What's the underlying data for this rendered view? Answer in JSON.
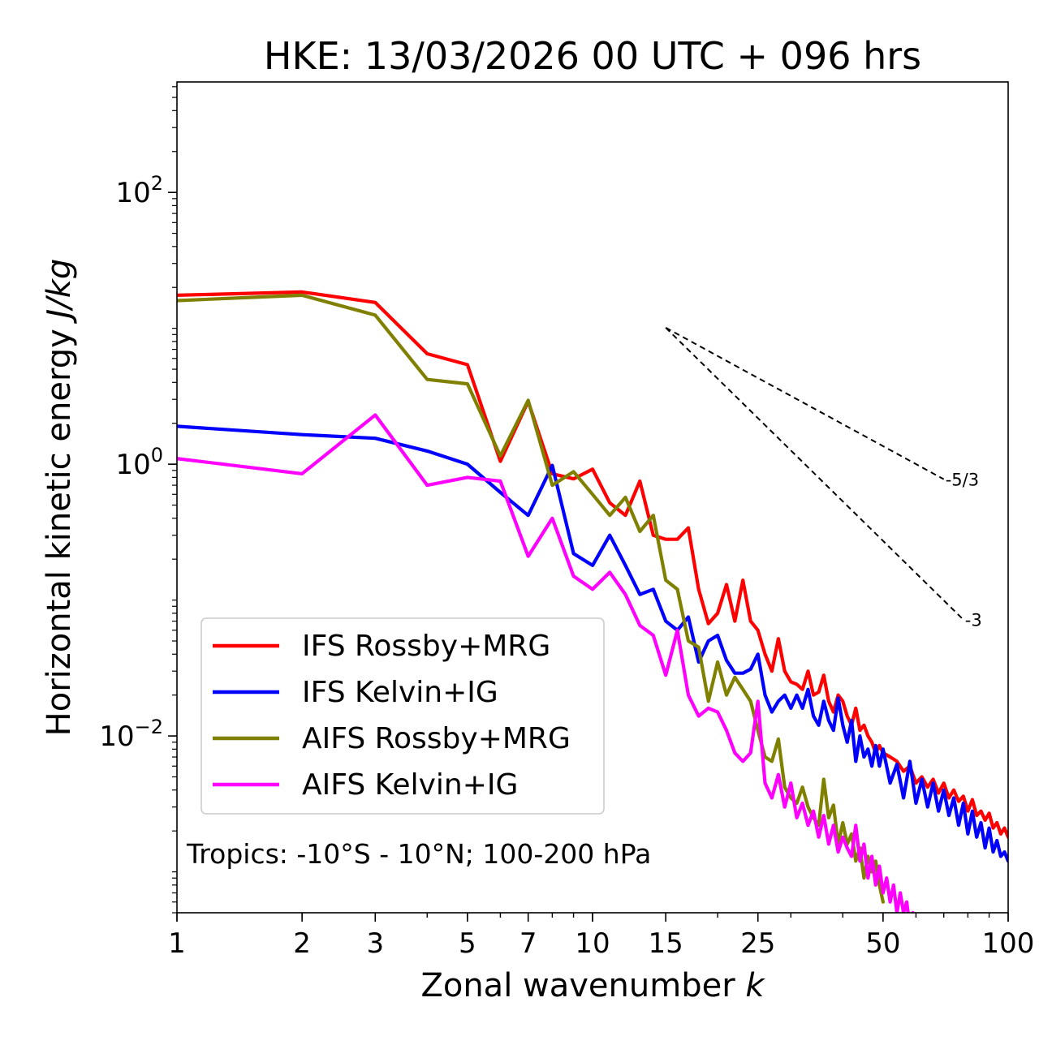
{
  "chart_data": {
    "type": "line",
    "title": "HKE: 13/03/2026 00 UTC + 096 hrs",
    "xlabel": "Zonal wavenumber ",
    "xlabel_var": "k",
    "ylabel": "Horizontal kinetic energy ",
    "ylabel_unit": "J/kg",
    "xscale": "log",
    "yscale": "log",
    "xlim": [
      1,
      100
    ],
    "ylim": [
      0.0005,
      650
    ],
    "x_ticks": [
      1,
      2,
      3,
      5,
      7,
      10,
      15,
      25,
      50,
      100
    ],
    "x_tick_labels": [
      "1",
      "2",
      "3",
      "5",
      "7",
      "10",
      "15",
      "25",
      "50",
      "100"
    ],
    "y_ticks": [
      {
        "value": 100,
        "base": "10",
        "exp": "2"
      },
      {
        "value": 1,
        "base": "10",
        "exp": "0"
      },
      {
        "value": 0.01,
        "base": "10",
        "exp": "−2"
      }
    ],
    "annotation": "Tropics: -10°S - 10°N; 100-200 hPa",
    "legend_position": "lower-left",
    "reference_slopes": [
      {
        "label": "-5/3",
        "slope": -1.6667,
        "x_start": 15,
        "y_start": 10.1,
        "x_end": 70
      },
      {
        "label": "-3",
        "slope": -3,
        "x_start": 15,
        "y_start": 10.1,
        "x_end": 78
      }
    ],
    "series": [
      {
        "name": "IFS Rossby+MRG",
        "color": "#ff0000",
        "x": [
          1,
          2,
          3,
          4,
          5,
          6,
          7,
          8,
          9,
          10,
          11,
          12,
          13,
          14,
          15,
          16,
          17,
          18,
          19,
          20,
          21,
          22,
          23,
          24,
          25,
          26,
          27,
          28,
          29,
          30,
          31,
          32,
          33,
          34,
          35,
          36,
          37,
          38,
          39,
          40,
          41,
          42,
          43,
          44,
          45,
          46,
          47,
          48,
          49,
          50,
          52,
          54,
          56,
          58,
          60,
          62,
          64,
          66,
          68,
          70,
          72,
          74,
          76,
          78,
          80,
          82,
          84,
          86,
          88,
          90,
          92,
          94,
          96,
          98,
          100
        ],
        "values": [
          17.5,
          18.5,
          15.5,
          6.5,
          5.4,
          1.05,
          2.9,
          0.85,
          0.78,
          0.92,
          0.52,
          0.42,
          0.75,
          0.3,
          0.28,
          0.28,
          0.34,
          0.12,
          0.067,
          0.08,
          0.13,
          0.07,
          0.14,
          0.07,
          0.06,
          0.04,
          0.03,
          0.052,
          0.03,
          0.025,
          0.024,
          0.022,
          0.03,
          0.02,
          0.021,
          0.028,
          0.018,
          0.015,
          0.02,
          0.018,
          0.014,
          0.012,
          0.016,
          0.011,
          0.012,
          0.01,
          0.009,
          0.0075,
          0.0085,
          0.0075,
          0.007,
          0.0065,
          0.0055,
          0.006,
          0.0045,
          0.005,
          0.0042,
          0.0048,
          0.0038,
          0.0045,
          0.0035,
          0.004,
          0.0033,
          0.0036,
          0.0028,
          0.0034,
          0.0026,
          0.0028,
          0.0024,
          0.0027,
          0.0021,
          0.0023,
          0.0019,
          0.0021,
          0.0018
        ]
      },
      {
        "name": "IFS Kelvin+IG",
        "color": "#0000ff",
        "x": [
          1,
          2,
          3,
          4,
          5,
          6,
          7,
          8,
          9,
          10,
          11,
          12,
          13,
          14,
          15,
          16,
          17,
          18,
          19,
          20,
          21,
          22,
          23,
          24,
          25,
          26,
          27,
          28,
          29,
          30,
          31,
          32,
          33,
          34,
          35,
          36,
          37,
          38,
          39,
          40,
          41,
          42,
          43,
          44,
          45,
          46,
          47,
          48,
          49,
          50,
          52,
          54,
          56,
          58,
          60,
          62,
          64,
          66,
          68,
          70,
          72,
          74,
          76,
          78,
          80,
          82,
          84,
          86,
          88,
          90,
          92,
          94,
          96,
          98,
          100
        ],
        "values": [
          1.9,
          1.65,
          1.55,
          1.25,
          1.0,
          0.62,
          0.42,
          0.98,
          0.22,
          0.18,
          0.3,
          0.18,
          0.11,
          0.12,
          0.07,
          0.06,
          0.075,
          0.035,
          0.05,
          0.055,
          0.036,
          0.029,
          0.029,
          0.031,
          0.04,
          0.02,
          0.015,
          0.018,
          0.02,
          0.016,
          0.02,
          0.016,
          0.022,
          0.014,
          0.012,
          0.018,
          0.013,
          0.011,
          0.019,
          0.012,
          0.009,
          0.013,
          0.0065,
          0.01,
          0.007,
          0.008,
          0.006,
          0.0085,
          0.006,
          0.008,
          0.0045,
          0.0062,
          0.0035,
          0.0065,
          0.0032,
          0.0048,
          0.003,
          0.0045,
          0.0028,
          0.004,
          0.0026,
          0.0035,
          0.0022,
          0.0032,
          0.0019,
          0.0028,
          0.0018,
          0.0023,
          0.0015,
          0.0021,
          0.0014,
          0.0017,
          0.0013,
          0.0014,
          0.0012
        ]
      },
      {
        "name": "AIFS Rossby+MRG",
        "color": "#808000",
        "x": [
          1,
          2,
          3,
          4,
          5,
          6,
          7,
          8,
          9,
          10,
          11,
          12,
          13,
          14,
          15,
          16,
          17,
          18,
          19,
          20,
          21,
          22,
          23,
          24,
          25,
          26,
          27,
          28,
          29,
          30,
          31,
          32,
          33,
          34,
          35,
          36,
          37,
          38,
          39,
          40,
          41,
          42,
          43,
          44,
          45,
          46,
          47,
          48,
          49,
          50
        ],
        "values": [
          16,
          17.5,
          12.5,
          4.2,
          3.9,
          1.15,
          2.95,
          0.7,
          0.88,
          0.6,
          0.42,
          0.57,
          0.32,
          0.42,
          0.14,
          0.12,
          0.05,
          0.045,
          0.018,
          0.035,
          0.02,
          0.027,
          0.022,
          0.018,
          0.011,
          0.007,
          0.0065,
          0.0095,
          0.0042,
          0.0035,
          0.0032,
          0.0042,
          0.003,
          0.0025,
          0.0022,
          0.0048,
          0.0025,
          0.0031,
          0.0016,
          0.0023,
          0.0016,
          0.0019,
          0.0012,
          0.0015,
          0.0009,
          0.0013,
          0.001,
          0.0012,
          0.0008,
          0.0006
        ]
      },
      {
        "name": "AIFS Kelvin+IG",
        "color": "#ff00ff",
        "x": [
          1,
          2,
          3,
          4,
          5,
          6,
          7,
          8,
          9,
          10,
          11,
          12,
          13,
          14,
          15,
          16,
          17,
          18,
          19,
          20,
          21,
          22,
          23,
          24,
          25,
          26,
          27,
          28,
          29,
          30,
          31,
          32,
          33,
          34,
          35,
          36,
          37,
          38,
          39,
          40,
          41,
          42,
          43,
          44,
          45,
          46,
          47,
          48,
          49,
          50,
          51,
          52,
          53,
          54,
          55,
          56,
          57,
          58,
          59,
          60
        ],
        "values": [
          1.1,
          0.85,
          2.3,
          0.7,
          0.8,
          0.75,
          0.21,
          0.4,
          0.15,
          0.12,
          0.16,
          0.11,
          0.065,
          0.055,
          0.028,
          0.06,
          0.02,
          0.014,
          0.016,
          0.015,
          0.011,
          0.0075,
          0.0065,
          0.0075,
          0.018,
          0.0045,
          0.0035,
          0.0052,
          0.003,
          0.0045,
          0.0025,
          0.0032,
          0.0022,
          0.0028,
          0.0018,
          0.0026,
          0.0016,
          0.0022,
          0.0014,
          0.0018,
          0.0015,
          0.0013,
          0.0022,
          0.0012,
          0.0016,
          0.0009,
          0.0013,
          0.0008,
          0.0011,
          0.0007,
          0.0009,
          0.0006,
          0.0008,
          0.0005,
          0.0007,
          0.0005,
          0.0006,
          0.0004,
          0.0005,
          0.0004
        ]
      }
    ]
  }
}
